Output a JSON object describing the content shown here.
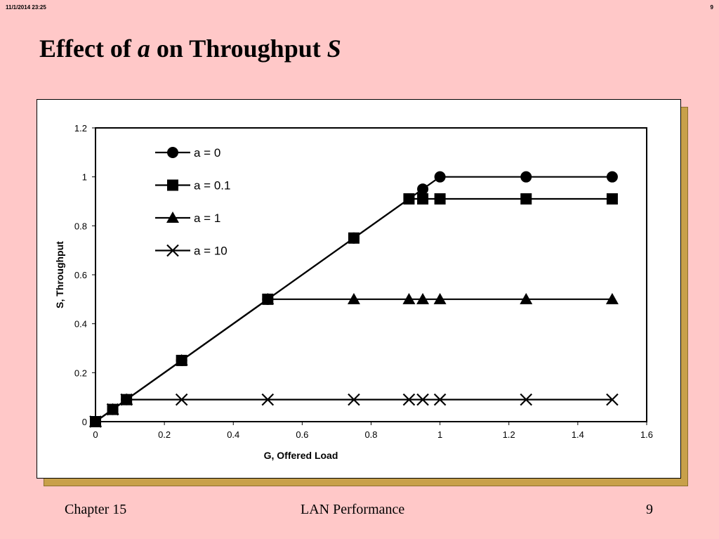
{
  "header": {
    "date": "11/1/2014  23:25",
    "page": "9"
  },
  "slide": {
    "title_pre": "Effect of ",
    "title_a": "a",
    "title_mid": " on Throughput ",
    "title_s": "S"
  },
  "footer": {
    "left": "Chapter 15",
    "center": "LAN Performance",
    "right": "9"
  },
  "chart_data": {
    "type": "line",
    "xlabel": "G, Offered Load",
    "ylabel": "S, Throughput",
    "xlim": [
      0,
      1.6
    ],
    "ylim": [
      0,
      1.2
    ],
    "xticks": [
      0,
      0.2,
      0.4,
      0.6,
      0.8,
      1,
      1.2,
      1.4,
      1.6
    ],
    "yticks": [
      0,
      0.2,
      0.4,
      0.6,
      0.8,
      1,
      1.2
    ],
    "xtick_labels": [
      "0",
      "0.2",
      "0.4",
      "0.6",
      "0.8",
      "1",
      "1.2",
      "1.4",
      "1.6"
    ],
    "ytick_labels": [
      "0",
      "0.2",
      "0.4",
      "0.6",
      "0.8",
      "1",
      "1.2"
    ],
    "grid": false,
    "legend_position": "top-left",
    "series": [
      {
        "name": "a = 0",
        "marker": "circle",
        "color": "#000000",
        "x": [
          0,
          0.05,
          0.09,
          0.25,
          0.5,
          0.75,
          0.91,
          0.95,
          1,
          1.25,
          1.5
        ],
        "y": [
          0,
          0.05,
          0.09,
          0.25,
          0.5,
          0.75,
          0.91,
          0.95,
          1,
          1,
          1
        ]
      },
      {
        "name": "a = 0.1",
        "marker": "square",
        "color": "#000000",
        "x": [
          0,
          0.05,
          0.09,
          0.25,
          0.5,
          0.75,
          0.91,
          0.95,
          1,
          1.25,
          1.5
        ],
        "y": [
          0,
          0.05,
          0.09,
          0.25,
          0.5,
          0.75,
          0.91,
          0.91,
          0.91,
          0.91,
          0.91
        ]
      },
      {
        "name": "a = 1",
        "marker": "triangle",
        "color": "#000000",
        "x": [
          0,
          0.05,
          0.09,
          0.25,
          0.5,
          0.75,
          0.91,
          0.95,
          1,
          1.25,
          1.5
        ],
        "y": [
          0,
          0.05,
          0.09,
          0.25,
          0.5,
          0.5,
          0.5,
          0.5,
          0.5,
          0.5,
          0.5
        ]
      },
      {
        "name": "a = 10",
        "marker": "x",
        "color": "#000000",
        "x": [
          0,
          0.05,
          0.09,
          0.25,
          0.5,
          0.75,
          0.91,
          0.95,
          1,
          1.25,
          1.5
        ],
        "y": [
          0,
          0.05,
          0.09,
          0.09,
          0.09,
          0.09,
          0.09,
          0.09,
          0.09,
          0.09,
          0.09
        ]
      }
    ]
  }
}
